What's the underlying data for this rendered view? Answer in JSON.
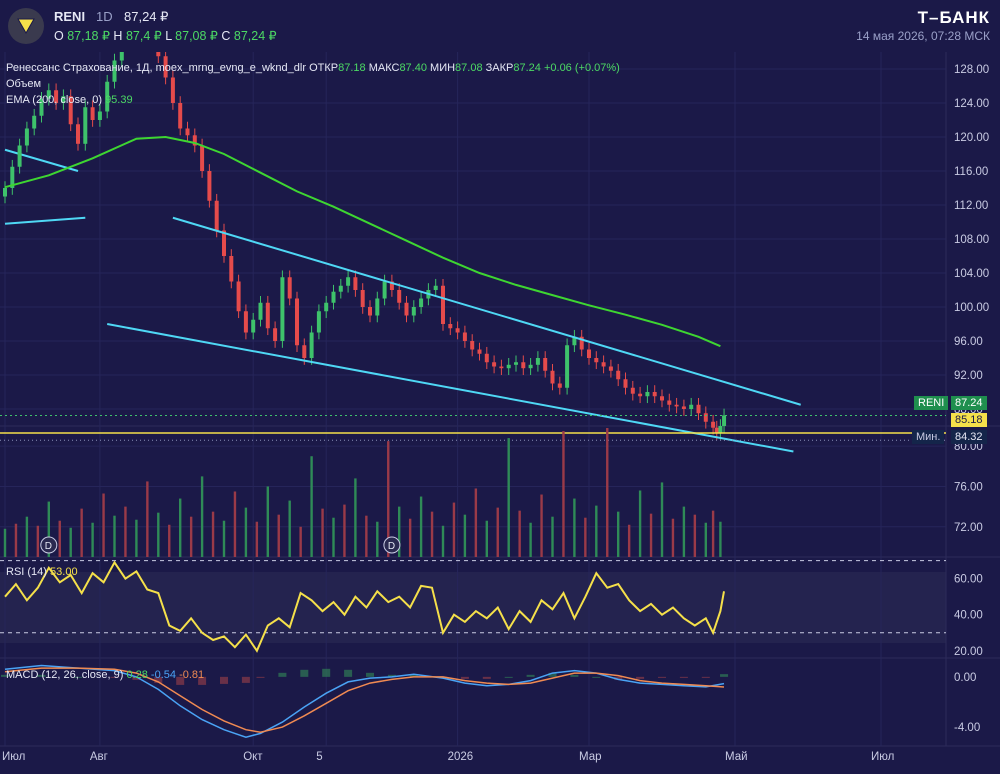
{
  "header": {
    "ticker": "RENI",
    "timeframe": "1D",
    "last_price": "87,24 ₽",
    "ohlc": {
      "open_label": "O",
      "open": "87,18 ₽",
      "high_label": "H",
      "high": "87,4 ₽",
      "low_label": "L",
      "low": "87,08 ₽",
      "close_label": "C",
      "close": "87,24 ₽"
    },
    "brand": "Т–БАНК",
    "datetime": "14 мая 2026, 07:28 МСК"
  },
  "legend": {
    "main": {
      "name": "Ренессанс Страхование, 1Д, moex_mrng_evng_e_wknd_dlr",
      "open_label": "ОТКР",
      "open": "87.18",
      "high_label": "МАКС",
      "high": "87.40",
      "low_label": "МИН",
      "low": "87.08",
      "close_label": "ЗАКР",
      "close": "87.24",
      "change": "+0.06 (+0.07%)"
    },
    "volume_label": "Объем",
    "ema_label": "EMA (200, close, 0)",
    "ema_value": "95.39",
    "rsi_label": "RSI (14)",
    "rsi_value": "53.00",
    "macd_label": "MACD (12, 26, close, 9)",
    "macd_values": [
      "0.28",
      "-0.54",
      "-0.81"
    ]
  },
  "badges": {
    "last": {
      "label": "RENI",
      "value": "87.24"
    },
    "level": "85.18",
    "min": {
      "label": "Мин.",
      "value": "84.32"
    }
  },
  "colors": {
    "background": "#1b1948",
    "up": "#3ec26b",
    "down": "#e54b4b",
    "ema": "#3ed631",
    "trendline": "#4fd8f5",
    "level": "#f5e04a",
    "rsi": "#f5e04a",
    "macd_line": "#4aa3f5",
    "signal_line": "#f08a52"
  },
  "chart_data": [
    {
      "type": "candlestick",
      "panel": "price",
      "x_ticks": [
        "Июл",
        "Авг",
        "Окт",
        "5",
        "2026",
        "Мар",
        "Май",
        "Июл"
      ],
      "x_tick_month_positions": [
        0,
        1.3,
        3.4,
        4.4,
        6.2,
        8.0,
        10.0,
        12.0
      ],
      "y_ticks": [
        "128.00",
        "124.00",
        "120.00",
        "116.00",
        "112.00",
        "108.00",
        "104.00",
        "100.00",
        "96.00",
        "92.00",
        "88.00"
      ],
      "ylim": [
        86,
        130
      ],
      "last_close": 87.24,
      "min_price": 84.32,
      "horizontal_level": 85.18,
      "ema_200": [
        [
          0,
          114.1
        ],
        [
          0.6,
          115.5
        ],
        [
          1.2,
          117.5
        ],
        [
          1.8,
          119.8
        ],
        [
          2.2,
          120.0
        ],
        [
          2.6,
          119.3
        ],
        [
          3.0,
          118.0
        ],
        [
          3.5,
          115.8
        ],
        [
          4.0,
          113.6
        ],
        [
          4.5,
          111.8
        ],
        [
          5.0,
          109.8
        ],
        [
          5.5,
          107.8
        ],
        [
          6.0,
          105.8
        ],
        [
          6.5,
          104.0
        ],
        [
          7.0,
          102.6
        ],
        [
          7.5,
          101.4
        ],
        [
          8.0,
          100.2
        ],
        [
          8.5,
          99.1
        ],
        [
          9.0,
          97.9
        ],
        [
          9.5,
          96.5
        ],
        [
          9.8,
          95.39
        ]
      ],
      "channel_upper": [
        [
          2.3,
          110.5
        ],
        [
          10.9,
          88.5
        ]
      ],
      "channel_lower": [
        [
          1.4,
          98.0
        ],
        [
          10.8,
          83.0
        ]
      ],
      "old_trend_upper": [
        [
          0,
          118.5
        ],
        [
          1.0,
          116.0
        ]
      ],
      "old_trend_lower": [
        [
          0,
          109.8
        ],
        [
          1.1,
          110.5
        ]
      ],
      "close": [
        [
          0.0,
          114.0
        ],
        [
          0.1,
          116.5
        ],
        [
          0.2,
          119.0
        ],
        [
          0.3,
          121.0
        ],
        [
          0.4,
          122.5
        ],
        [
          0.5,
          124.5
        ],
        [
          0.6,
          125.5
        ],
        [
          0.7,
          124.0
        ],
        [
          0.8,
          124.8
        ],
        [
          0.9,
          121.5
        ],
        [
          1.0,
          119.2
        ],
        [
          1.1,
          123.5
        ],
        [
          1.2,
          122.0
        ],
        [
          1.3,
          123.0
        ],
        [
          1.4,
          126.5
        ],
        [
          1.5,
          129.0
        ],
        [
          1.6,
          131.5
        ],
        [
          1.7,
          133.0
        ],
        [
          1.8,
          132.0
        ],
        [
          1.9,
          132.5
        ],
        [
          2.0,
          131.0
        ],
        [
          2.1,
          129.5
        ],
        [
          2.2,
          127.0
        ],
        [
          2.3,
          124.0
        ],
        [
          2.4,
          121.0
        ],
        [
          2.5,
          120.2
        ],
        [
          2.6,
          119.0
        ],
        [
          2.7,
          116.0
        ],
        [
          2.8,
          112.5
        ],
        [
          2.9,
          109.0
        ],
        [
          3.0,
          106.0
        ],
        [
          3.1,
          103.0
        ],
        [
          3.2,
          99.5
        ],
        [
          3.3,
          97.0
        ],
        [
          3.4,
          98.5
        ],
        [
          3.5,
          100.5
        ],
        [
          3.6,
          97.5
        ],
        [
          3.7,
          96.0
        ],
        [
          3.8,
          103.5
        ],
        [
          3.9,
          101.0
        ],
        [
          4.0,
          95.5
        ],
        [
          4.1,
          94.0
        ],
        [
          4.2,
          97.0
        ],
        [
          4.3,
          99.5
        ],
        [
          4.4,
          100.5
        ],
        [
          4.5,
          101.8
        ],
        [
          4.6,
          102.5
        ],
        [
          4.7,
          103.5
        ],
        [
          4.8,
          102.0
        ],
        [
          4.9,
          100.0
        ],
        [
          5.0,
          99.0
        ],
        [
          5.1,
          101.0
        ],
        [
          5.2,
          103.0
        ],
        [
          5.3,
          102.0
        ],
        [
          5.4,
          100.5
        ],
        [
          5.5,
          99.0
        ],
        [
          5.6,
          100.0
        ],
        [
          5.7,
          101.0
        ],
        [
          5.8,
          102.0
        ],
        [
          5.9,
          102.5
        ],
        [
          6.0,
          98.0
        ],
        [
          6.1,
          97.5
        ],
        [
          6.2,
          97.0
        ],
        [
          6.3,
          96.0
        ],
        [
          6.4,
          95.0
        ],
        [
          6.5,
          94.5
        ],
        [
          6.6,
          93.5
        ],
        [
          6.7,
          93.0
        ],
        [
          6.8,
          92.8
        ],
        [
          6.9,
          93.2
        ],
        [
          7.0,
          93.5
        ],
        [
          7.1,
          92.8
        ],
        [
          7.2,
          93.2
        ],
        [
          7.3,
          94.0
        ],
        [
          7.4,
          92.5
        ],
        [
          7.5,
          91.0
        ],
        [
          7.6,
          90.5
        ],
        [
          7.7,
          95.5
        ],
        [
          7.8,
          96.5
        ],
        [
          7.9,
          95.0
        ],
        [
          8.0,
          94.0
        ],
        [
          8.1,
          93.5
        ],
        [
          8.2,
          93.0
        ],
        [
          8.3,
          92.5
        ],
        [
          8.4,
          91.5
        ],
        [
          8.5,
          90.5
        ],
        [
          8.6,
          89.8
        ],
        [
          8.7,
          89.5
        ],
        [
          8.8,
          90.0
        ],
        [
          8.9,
          89.5
        ],
        [
          9.0,
          89.0
        ],
        [
          9.1,
          88.5
        ],
        [
          9.2,
          88.3
        ],
        [
          9.3,
          88.0
        ],
        [
          9.4,
          88.5
        ],
        [
          9.5,
          87.5
        ],
        [
          9.6,
          86.5
        ],
        [
          9.7,
          85.8
        ],
        [
          9.75,
          85.2
        ],
        [
          9.8,
          86.0
        ],
        [
          9.85,
          87.24
        ]
      ]
    },
    {
      "type": "bar",
      "panel": "volume",
      "y_ticks": [
        "80.00",
        "76.00",
        "72.00"
      ],
      "ylim": [
        69,
        82
      ],
      "markers": [
        {
          "x": 0.6,
          "label": "D"
        },
        {
          "x": 5.3,
          "label": "D"
        }
      ],
      "values": [
        [
          0.0,
          71.8
        ],
        [
          0.15,
          72.3
        ],
        [
          0.3,
          73.0
        ],
        [
          0.45,
          72.1
        ],
        [
          0.6,
          74.5
        ],
        [
          0.75,
          72.6
        ],
        [
          0.9,
          71.9
        ],
        [
          1.05,
          73.8
        ],
        [
          1.2,
          72.4
        ],
        [
          1.35,
          75.3
        ],
        [
          1.5,
          73.1
        ],
        [
          1.65,
          74.0
        ],
        [
          1.8,
          72.7
        ],
        [
          1.95,
          76.5
        ],
        [
          2.1,
          73.4
        ],
        [
          2.25,
          72.2
        ],
        [
          2.4,
          74.8
        ],
        [
          2.55,
          73.0
        ],
        [
          2.7,
          77.0
        ],
        [
          2.85,
          73.5
        ],
        [
          3.0,
          72.6
        ],
        [
          3.15,
          75.5
        ],
        [
          3.3,
          73.9
        ],
        [
          3.45,
          72.5
        ],
        [
          3.6,
          76.0
        ],
        [
          3.75,
          73.2
        ],
        [
          3.9,
          74.6
        ],
        [
          4.05,
          72.0
        ],
        [
          4.2,
          79.0
        ],
        [
          4.35,
          73.8
        ],
        [
          4.5,
          72.9
        ],
        [
          4.65,
          74.2
        ],
        [
          4.8,
          76.8
        ],
        [
          4.95,
          73.1
        ],
        [
          5.1,
          72.5
        ],
        [
          5.25,
          80.5
        ],
        [
          5.4,
          74.0
        ],
        [
          5.55,
          72.8
        ],
        [
          5.7,
          75.0
        ],
        [
          5.85,
          73.5
        ],
        [
          6.0,
          72.1
        ],
        [
          6.15,
          74.4
        ],
        [
          6.3,
          73.2
        ],
        [
          6.45,
          75.8
        ],
        [
          6.6,
          72.6
        ],
        [
          6.75,
          73.9
        ],
        [
          6.9,
          80.8
        ],
        [
          7.05,
          73.6
        ],
        [
          7.2,
          72.4
        ],
        [
          7.35,
          75.2
        ],
        [
          7.5,
          73.0
        ],
        [
          7.65,
          81.5
        ],
        [
          7.8,
          74.8
        ],
        [
          7.95,
          72.9
        ],
        [
          8.1,
          74.1
        ],
        [
          8.25,
          81.8
        ],
        [
          8.4,
          73.5
        ],
        [
          8.55,
          72.2
        ],
        [
          8.7,
          75.6
        ],
        [
          8.85,
          73.3
        ],
        [
          9.0,
          76.4
        ],
        [
          9.15,
          72.8
        ],
        [
          9.3,
          74.0
        ],
        [
          9.45,
          73.2
        ],
        [
          9.6,
          72.4
        ],
        [
          9.7,
          73.6
        ],
        [
          9.8,
          72.5
        ]
      ]
    },
    {
      "type": "line",
      "panel": "rsi",
      "y_ticks": [
        "60.00",
        "40.00",
        "20.00"
      ],
      "ylim": [
        16,
        72
      ],
      "bands": [
        70,
        30
      ],
      "values": [
        [
          0.0,
          50
        ],
        [
          0.15,
          57
        ],
        [
          0.3,
          48
        ],
        [
          0.45,
          55
        ],
        [
          0.6,
          66
        ],
        [
          0.75,
          58
        ],
        [
          0.9,
          62
        ],
        [
          1.05,
          52
        ],
        [
          1.2,
          63
        ],
        [
          1.35,
          58
        ],
        [
          1.5,
          69
        ],
        [
          1.65,
          60
        ],
        [
          1.8,
          64
        ],
        [
          1.95,
          54
        ],
        [
          2.1,
          52
        ],
        [
          2.25,
          34
        ],
        [
          2.4,
          31
        ],
        [
          2.55,
          38
        ],
        [
          2.7,
          30
        ],
        [
          2.85,
          26
        ],
        [
          3.0,
          28
        ],
        [
          3.15,
          22
        ],
        [
          3.3,
          29
        ],
        [
          3.45,
          20
        ],
        [
          3.6,
          34
        ],
        [
          3.75,
          38
        ],
        [
          3.9,
          33
        ],
        [
          4.05,
          52
        ],
        [
          4.2,
          48
        ],
        [
          4.35,
          42
        ],
        [
          4.5,
          47
        ],
        [
          4.65,
          40
        ],
        [
          4.8,
          50
        ],
        [
          4.95,
          44
        ],
        [
          5.1,
          53
        ],
        [
          5.25,
          47
        ],
        [
          5.4,
          50
        ],
        [
          5.55,
          44
        ],
        [
          5.7,
          56
        ],
        [
          5.85,
          55
        ],
        [
          6.0,
          30
        ],
        [
          6.15,
          40
        ],
        [
          6.3,
          36
        ],
        [
          6.45,
          42
        ],
        [
          6.6,
          38
        ],
        [
          6.75,
          44
        ],
        [
          6.9,
          32
        ],
        [
          7.05,
          42
        ],
        [
          7.2,
          36
        ],
        [
          7.35,
          48
        ],
        [
          7.5,
          43
        ],
        [
          7.65,
          52
        ],
        [
          7.8,
          38
        ],
        [
          7.95,
          50
        ],
        [
          8.1,
          63
        ],
        [
          8.25,
          55
        ],
        [
          8.4,
          57
        ],
        [
          8.55,
          48
        ],
        [
          8.7,
          42
        ],
        [
          8.85,
          46
        ],
        [
          9.0,
          40
        ],
        [
          9.15,
          44
        ],
        [
          9.3,
          38
        ],
        [
          9.45,
          34
        ],
        [
          9.6,
          38
        ],
        [
          9.7,
          30
        ],
        [
          9.8,
          42
        ],
        [
          9.85,
          53
        ]
      ]
    },
    {
      "type": "line",
      "panel": "macd",
      "y_ticks": [
        "0.00",
        "-4.00"
      ],
      "ylim": [
        -5.5,
        1.5
      ],
      "macd": [
        [
          0.0,
          0.6
        ],
        [
          0.5,
          0.9
        ],
        [
          1.0,
          0.7
        ],
        [
          1.5,
          0.5
        ],
        [
          1.8,
          0.0
        ],
        [
          2.1,
          -1.0
        ],
        [
          2.4,
          -2.3
        ],
        [
          2.7,
          -3.4
        ],
        [
          3.0,
          -4.2
        ],
        [
          3.3,
          -4.8
        ],
        [
          3.5,
          -4.5
        ],
        [
          3.8,
          -3.6
        ],
        [
          4.1,
          -2.4
        ],
        [
          4.4,
          -1.3
        ],
        [
          4.7,
          -0.4
        ],
        [
          5.0,
          -0.1
        ],
        [
          5.3,
          0.0
        ],
        [
          5.6,
          0.2
        ],
        [
          6.0,
          -0.1
        ],
        [
          6.3,
          -0.5
        ],
        [
          6.6,
          -0.7
        ],
        [
          6.9,
          -0.6
        ],
        [
          7.2,
          -0.3
        ],
        [
          7.5,
          0.3
        ],
        [
          7.8,
          0.5
        ],
        [
          8.1,
          0.3
        ],
        [
          8.4,
          -0.2
        ],
        [
          8.7,
          -0.5
        ],
        [
          9.0,
          -0.6
        ],
        [
          9.3,
          -0.7
        ],
        [
          9.6,
          -0.8
        ],
        [
          9.85,
          -0.54
        ]
      ],
      "signal": [
        [
          0.0,
          0.4
        ],
        [
          0.5,
          0.7
        ],
        [
          1.0,
          0.7
        ],
        [
          1.5,
          0.6
        ],
        [
          1.8,
          0.3
        ],
        [
          2.1,
          -0.4
        ],
        [
          2.4,
          -1.5
        ],
        [
          2.7,
          -2.6
        ],
        [
          3.0,
          -3.5
        ],
        [
          3.3,
          -4.2
        ],
        [
          3.5,
          -4.4
        ],
        [
          3.8,
          -4.0
        ],
        [
          4.1,
          -3.1
        ],
        [
          4.4,
          -2.1
        ],
        [
          4.7,
          -1.1
        ],
        [
          5.0,
          -0.5
        ],
        [
          5.3,
          -0.2
        ],
        [
          5.6,
          0.0
        ],
        [
          6.0,
          0.0
        ],
        [
          6.3,
          -0.3
        ],
        [
          6.6,
          -0.5
        ],
        [
          6.9,
          -0.6
        ],
        [
          7.2,
          -0.5
        ],
        [
          7.5,
          -0.1
        ],
        [
          7.8,
          0.3
        ],
        [
          8.1,
          0.3
        ],
        [
          8.4,
          0.1
        ],
        [
          8.7,
          -0.3
        ],
        [
          9.0,
          -0.5
        ],
        [
          9.3,
          -0.6
        ],
        [
          9.6,
          -0.7
        ],
        [
          9.85,
          -0.81
        ]
      ]
    }
  ]
}
